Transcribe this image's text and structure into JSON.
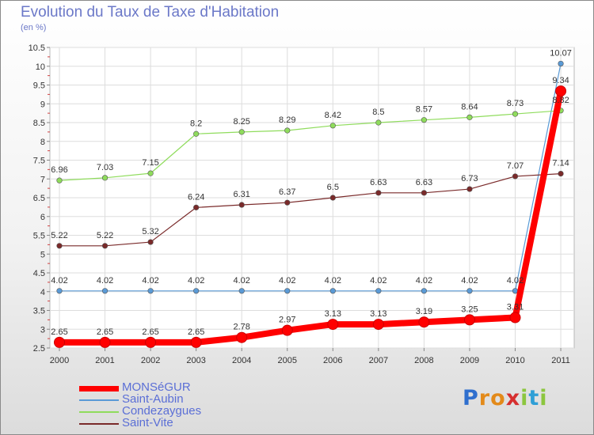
{
  "header": {
    "title": "Evolution du Taux de Taxe d'Habitation",
    "unit": "(en %)"
  },
  "logo": {
    "text": "Proxiti",
    "letters": [
      "P",
      "r",
      "o",
      "x",
      "i",
      "t",
      "i"
    ],
    "letter_colors": [
      "#2f6fce",
      "#e38a1a",
      "#e38a1a",
      "#d62f2f",
      "#8cc63f",
      "#2f9fd6",
      "#8cc63f"
    ]
  },
  "chart_data": {
    "type": "line",
    "x": [
      "2000",
      "2001",
      "2002",
      "2003",
      "2004",
      "2005",
      "2006",
      "2007",
      "2008",
      "2009",
      "2010",
      "2011"
    ],
    "ylim": [
      2.5,
      10.5
    ],
    "yticks": [
      "2.5",
      "3",
      "3.5",
      "4",
      "4.5",
      "5",
      "5.5",
      "6",
      "6.5",
      "7",
      "7.5",
      "8",
      "8.5",
      "9",
      "9.5",
      "10",
      "10.5"
    ],
    "grid": true,
    "series": [
      {
        "name": "MONSéGUR",
        "color": "#ff0000",
        "values": [
          2.65,
          2.65,
          2.65,
          2.65,
          2.78,
          2.97,
          3.13,
          3.13,
          3.19,
          3.25,
          3.31,
          9.34
        ],
        "labels": [
          "2.65",
          "2.65",
          "2.65",
          "2.65",
          "2.78",
          "2.97",
          "3.13",
          "3.13",
          "3.19",
          "3.25",
          "3.31",
          "9.34"
        ]
      },
      {
        "name": "Saint-Aubin",
        "color": "#5a9ad6",
        "values": [
          4.02,
          4.02,
          4.02,
          4.02,
          4.02,
          4.02,
          4.02,
          4.02,
          4.02,
          4.02,
          4.02,
          10.07
        ],
        "labels": [
          "4.02",
          "4.02",
          "4.02",
          "4.02",
          "4.02",
          "4.02",
          "4.02",
          "4.02",
          "4.02",
          "4.02",
          "4.02",
          "10.07"
        ]
      },
      {
        "name": "Condezaygues",
        "color": "#8fdc5c",
        "values": [
          6.96,
          7.03,
          7.15,
          8.2,
          8.25,
          8.29,
          8.42,
          8.5,
          8.57,
          8.64,
          8.73,
          8.82
        ],
        "labels": [
          "6.96",
          "7.03",
          "7.15",
          "8.2",
          "8.25",
          "8.29",
          "8.42",
          "8.5",
          "8.57",
          "8.64",
          "8.73",
          "8.82"
        ]
      },
      {
        "name": "Saint-Vite",
        "color": "#7a2a2a",
        "values": [
          5.22,
          5.22,
          5.32,
          6.24,
          6.31,
          6.37,
          6.5,
          6.63,
          6.63,
          6.73,
          7.07,
          7.14
        ],
        "labels": [
          "5.22",
          "5.22",
          "5.32",
          "6.24",
          "6.31",
          "6.37",
          "6.5",
          "6.63",
          "6.63",
          "6.73",
          "7.07",
          "7.14"
        ]
      }
    ]
  }
}
